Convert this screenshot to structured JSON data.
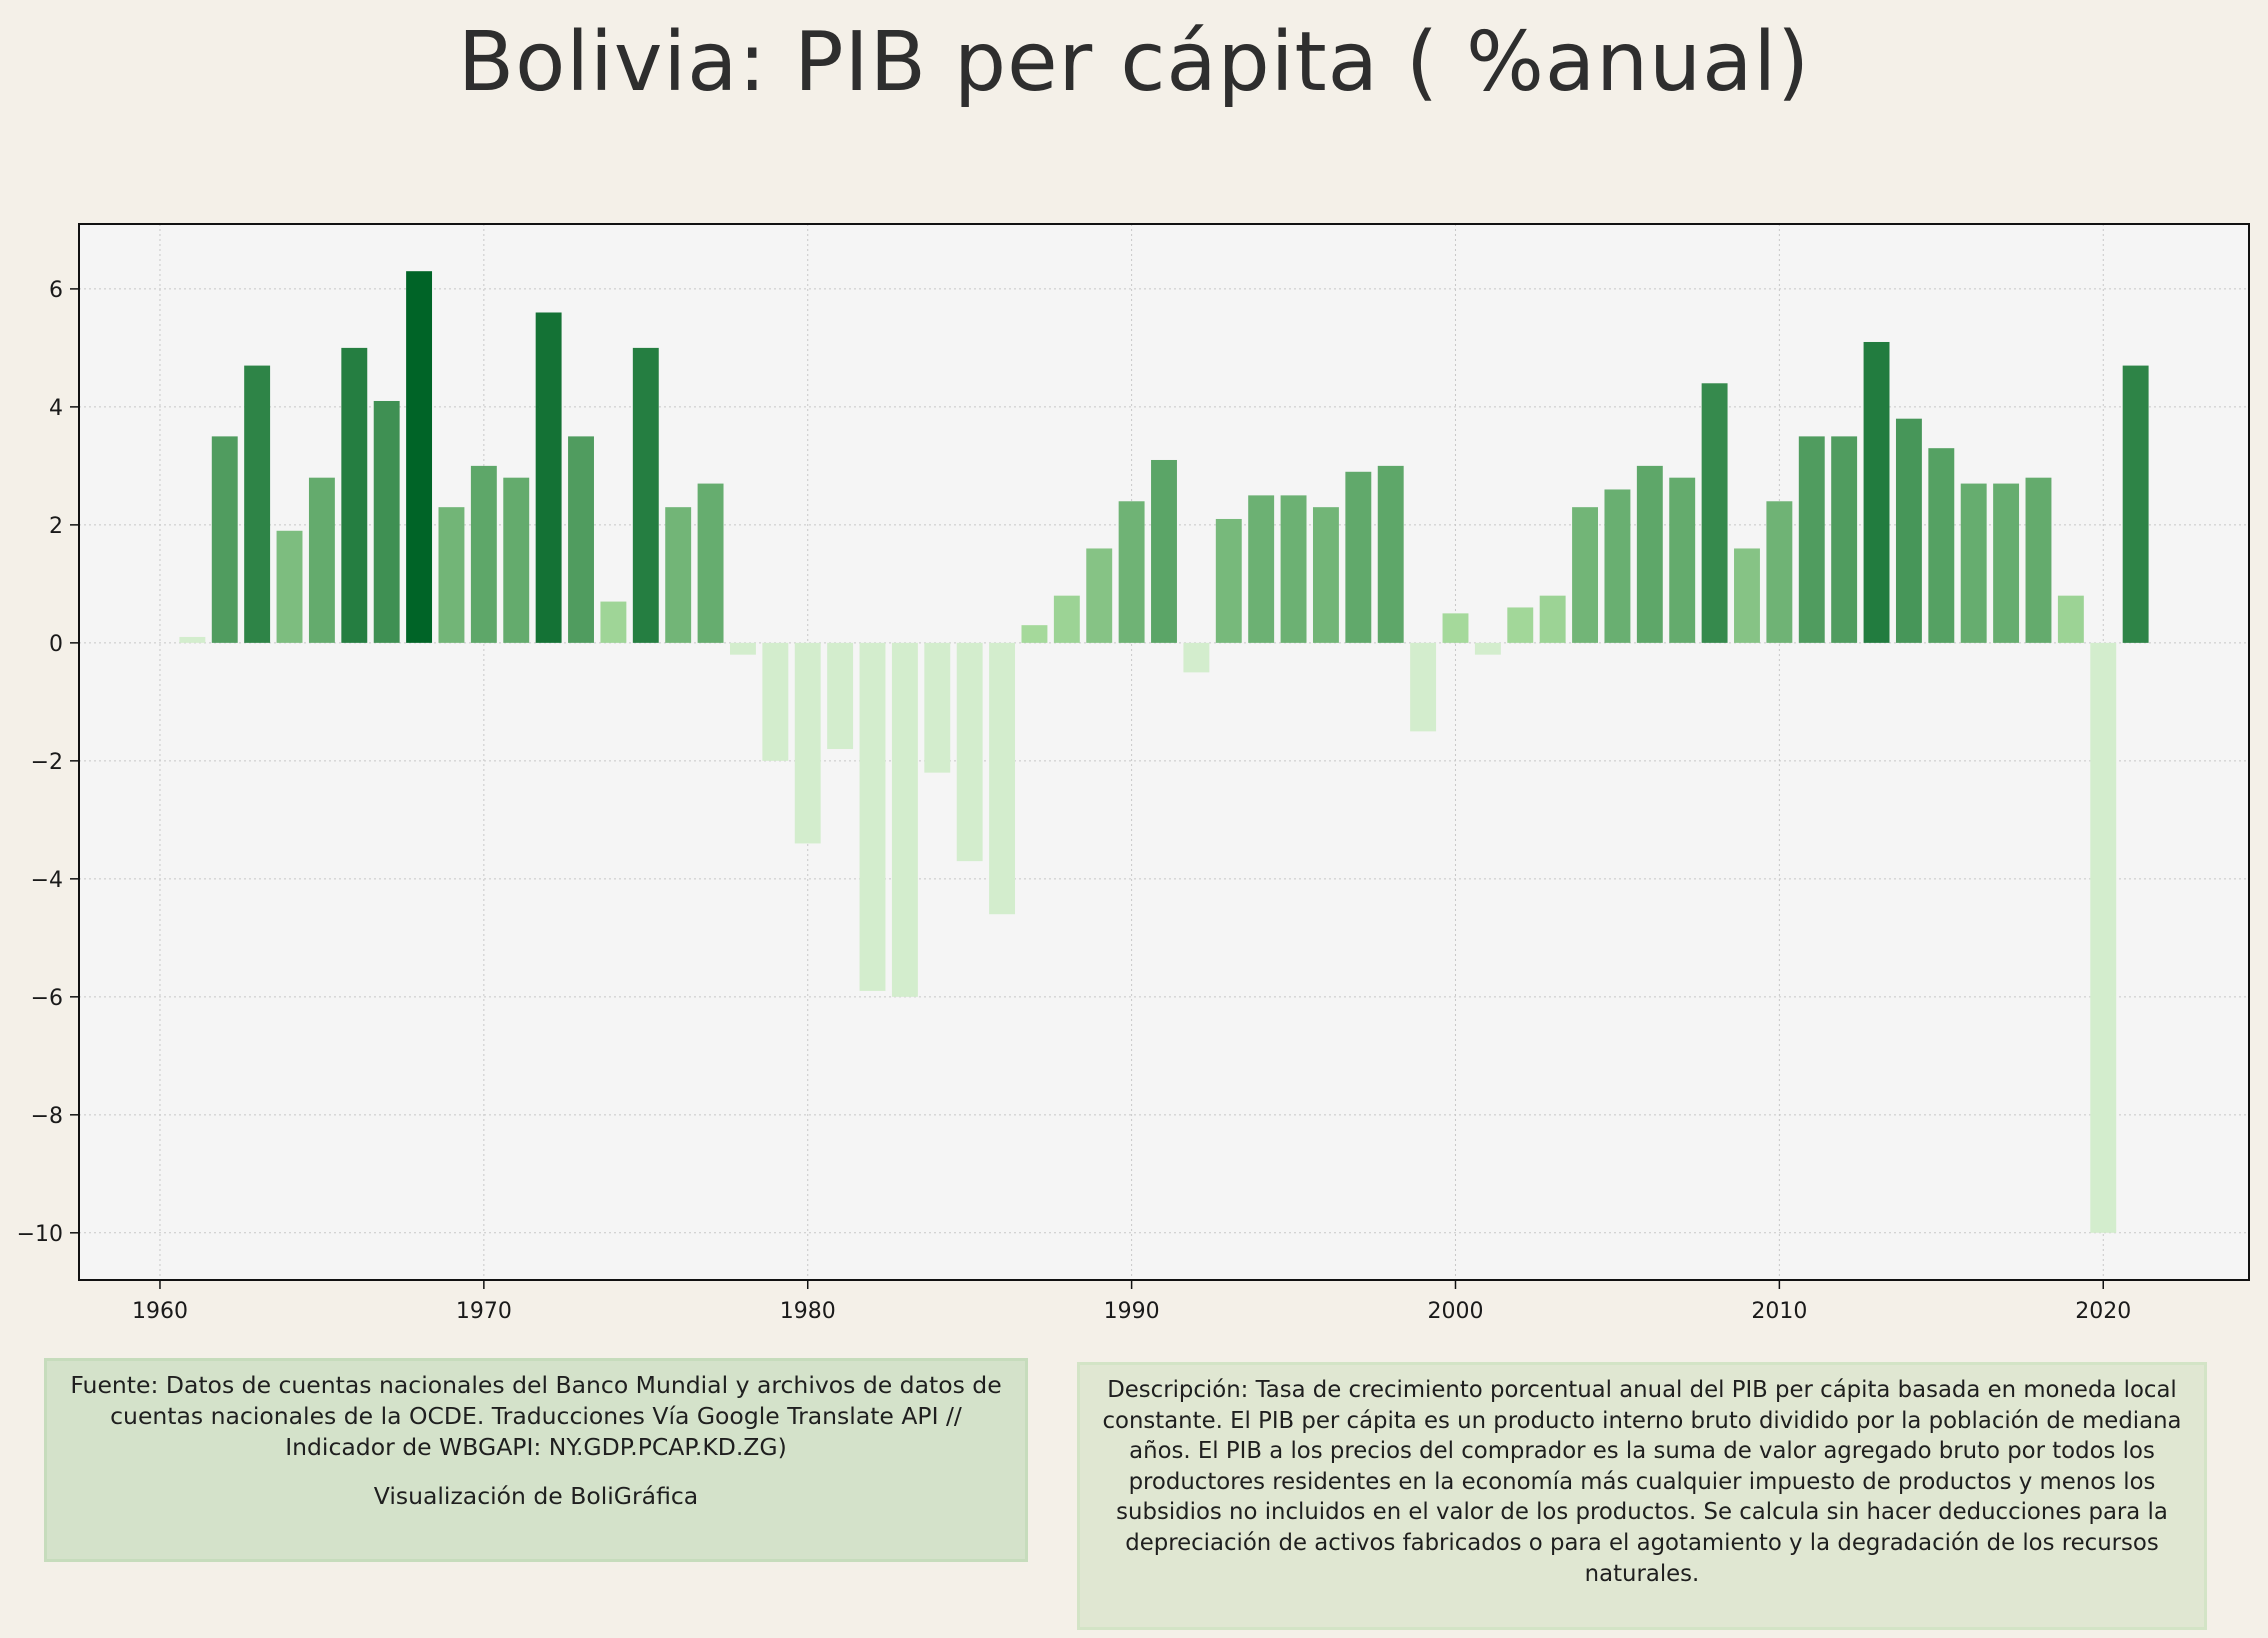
{
  "title": "Bolivia:  PIB per cápita ( %anual)",
  "source_text": "Fuente: Datos de cuentas nacionales del Banco Mundial y archivos de datos de cuentas nacionales de la OCDE. Traducciones Vía Google Translate API // Indicador de WBGAPI: NY.GDP.PCAP.KD.ZG)",
  "credit_text": "Visualización de BoliGráfica",
  "description_text": "Descripción: Tasa de crecimiento porcentual anual del PIB per cápita basada en moneda local constante. El PIB per cápita es un producto interno bruto dividido por la población de mediana años. El PIB a los precios del comprador es la suma de valor agregado bruto por todos los productores residentes en la economía más cualquier impuesto de productos y menos los subsidios no incluidos en el valor de los productos. Se calcula sin hacer deducciones para la depreciación de activos fabricados o para el agotamiento y la degradación de los recursos naturales.",
  "colors": {
    "background": "#f4f0e8",
    "plot_background": "#f5f5f5",
    "negative_bar": "#d3edcd",
    "positive_light": "#a5d99b",
    "positive_dark": "#006427"
  },
  "chart_data": {
    "type": "bar",
    "xlabel": "",
    "ylabel": "",
    "xlim": [
      1957.5,
      2024.5
    ],
    "ylim": [
      -10.8,
      7.1
    ],
    "xticks": [
      "1960",
      "1970",
      "1980",
      "1990",
      "2000",
      "2010",
      "2020"
    ],
    "yticks": [
      "6",
      "4",
      "2",
      "0",
      "−2",
      "−4",
      "−6",
      "−8",
      "−10"
    ],
    "grid": true,
    "legend": "none",
    "x": [
      1961,
      1962,
      1963,
      1964,
      1965,
      1966,
      1967,
      1968,
      1969,
      1970,
      1971,
      1972,
      1973,
      1974,
      1975,
      1976,
      1977,
      1978,
      1979,
      1980,
      1981,
      1982,
      1983,
      1984,
      1985,
      1986,
      1987,
      1988,
      1989,
      1990,
      1991,
      1992,
      1993,
      1994,
      1995,
      1996,
      1997,
      1998,
      1999,
      2000,
      2001,
      2002,
      2003,
      2004,
      2005,
      2006,
      2007,
      2008,
      2009,
      2010,
      2011,
      2012,
      2013,
      2014,
      2015,
      2016,
      2017,
      2018,
      2019,
      2020,
      2021
    ],
    "values": [
      0.1,
      3.5,
      4.7,
      1.9,
      2.8,
      5.0,
      4.1,
      6.3,
      2.3,
      3.0,
      2.8,
      5.6,
      3.5,
      0.7,
      5.0,
      2.3,
      2.7,
      -0.2,
      -2.0,
      -3.4,
      -1.8,
      -5.9,
      -6.0,
      -2.2,
      -3.7,
      -4.6,
      0.3,
      0.8,
      1.6,
      2.4,
      3.1,
      -0.5,
      2.1,
      2.5,
      2.5,
      2.3,
      2.9,
      3.0,
      -1.5,
      0.5,
      -0.2,
      0.6,
      0.8,
      2.3,
      2.6,
      3.0,
      2.8,
      4.4,
      1.6,
      2.4,
      3.5,
      3.5,
      5.1,
      3.8,
      3.3,
      2.7,
      2.7,
      2.8,
      0.8,
      -10.0,
      4.7
    ]
  }
}
